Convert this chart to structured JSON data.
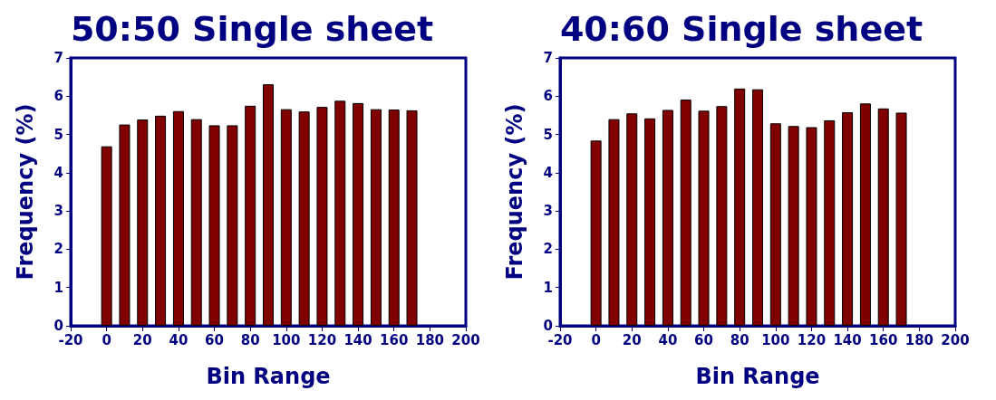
{
  "chart_data": [
    {
      "type": "bar",
      "title": "50:50 Single sheet",
      "xlabel": "Bin Range",
      "ylabel": "Frequency (%)",
      "x": [
        0,
        10,
        20,
        30,
        40,
        50,
        60,
        70,
        80,
        90,
        100,
        110,
        120,
        130,
        140,
        150,
        160,
        170
      ],
      "values": [
        4.69,
        5.26,
        5.39,
        5.49,
        5.61,
        5.4,
        5.24,
        5.24,
        5.75,
        6.31,
        5.66,
        5.6,
        5.72,
        5.88,
        5.82,
        5.66,
        5.65,
        5.63
      ],
      "color": "#800000",
      "xlim": [
        -20,
        200
      ],
      "xticks": [
        -20,
        0,
        20,
        40,
        60,
        80,
        100,
        120,
        140,
        160,
        180,
        200
      ],
      "ylim": [
        0,
        7
      ],
      "yticks": [
        0,
        1,
        2,
        3,
        4,
        5,
        6,
        7
      ],
      "grid": false
    },
    {
      "type": "bar",
      "title": "40:60 Single sheet",
      "xlabel": "Bin Range",
      "ylabel": "Frequency (%)",
      "x": [
        0,
        10,
        20,
        30,
        40,
        50,
        60,
        70,
        80,
        90,
        100,
        110,
        120,
        130,
        140,
        150,
        160,
        170
      ],
      "values": [
        4.84,
        5.4,
        5.55,
        5.42,
        5.64,
        5.91,
        5.62,
        5.74,
        6.2,
        6.18,
        5.29,
        5.22,
        5.19,
        5.37,
        5.58,
        5.81,
        5.68,
        5.57
      ],
      "color": "#800000",
      "xlim": [
        -20,
        200
      ],
      "xticks": [
        -20,
        0,
        20,
        40,
        60,
        80,
        100,
        120,
        140,
        160,
        180,
        200
      ],
      "ylim": [
        0,
        7
      ],
      "yticks": [
        0,
        1,
        2,
        3,
        4,
        5,
        6,
        7
      ],
      "grid": false
    }
  ]
}
